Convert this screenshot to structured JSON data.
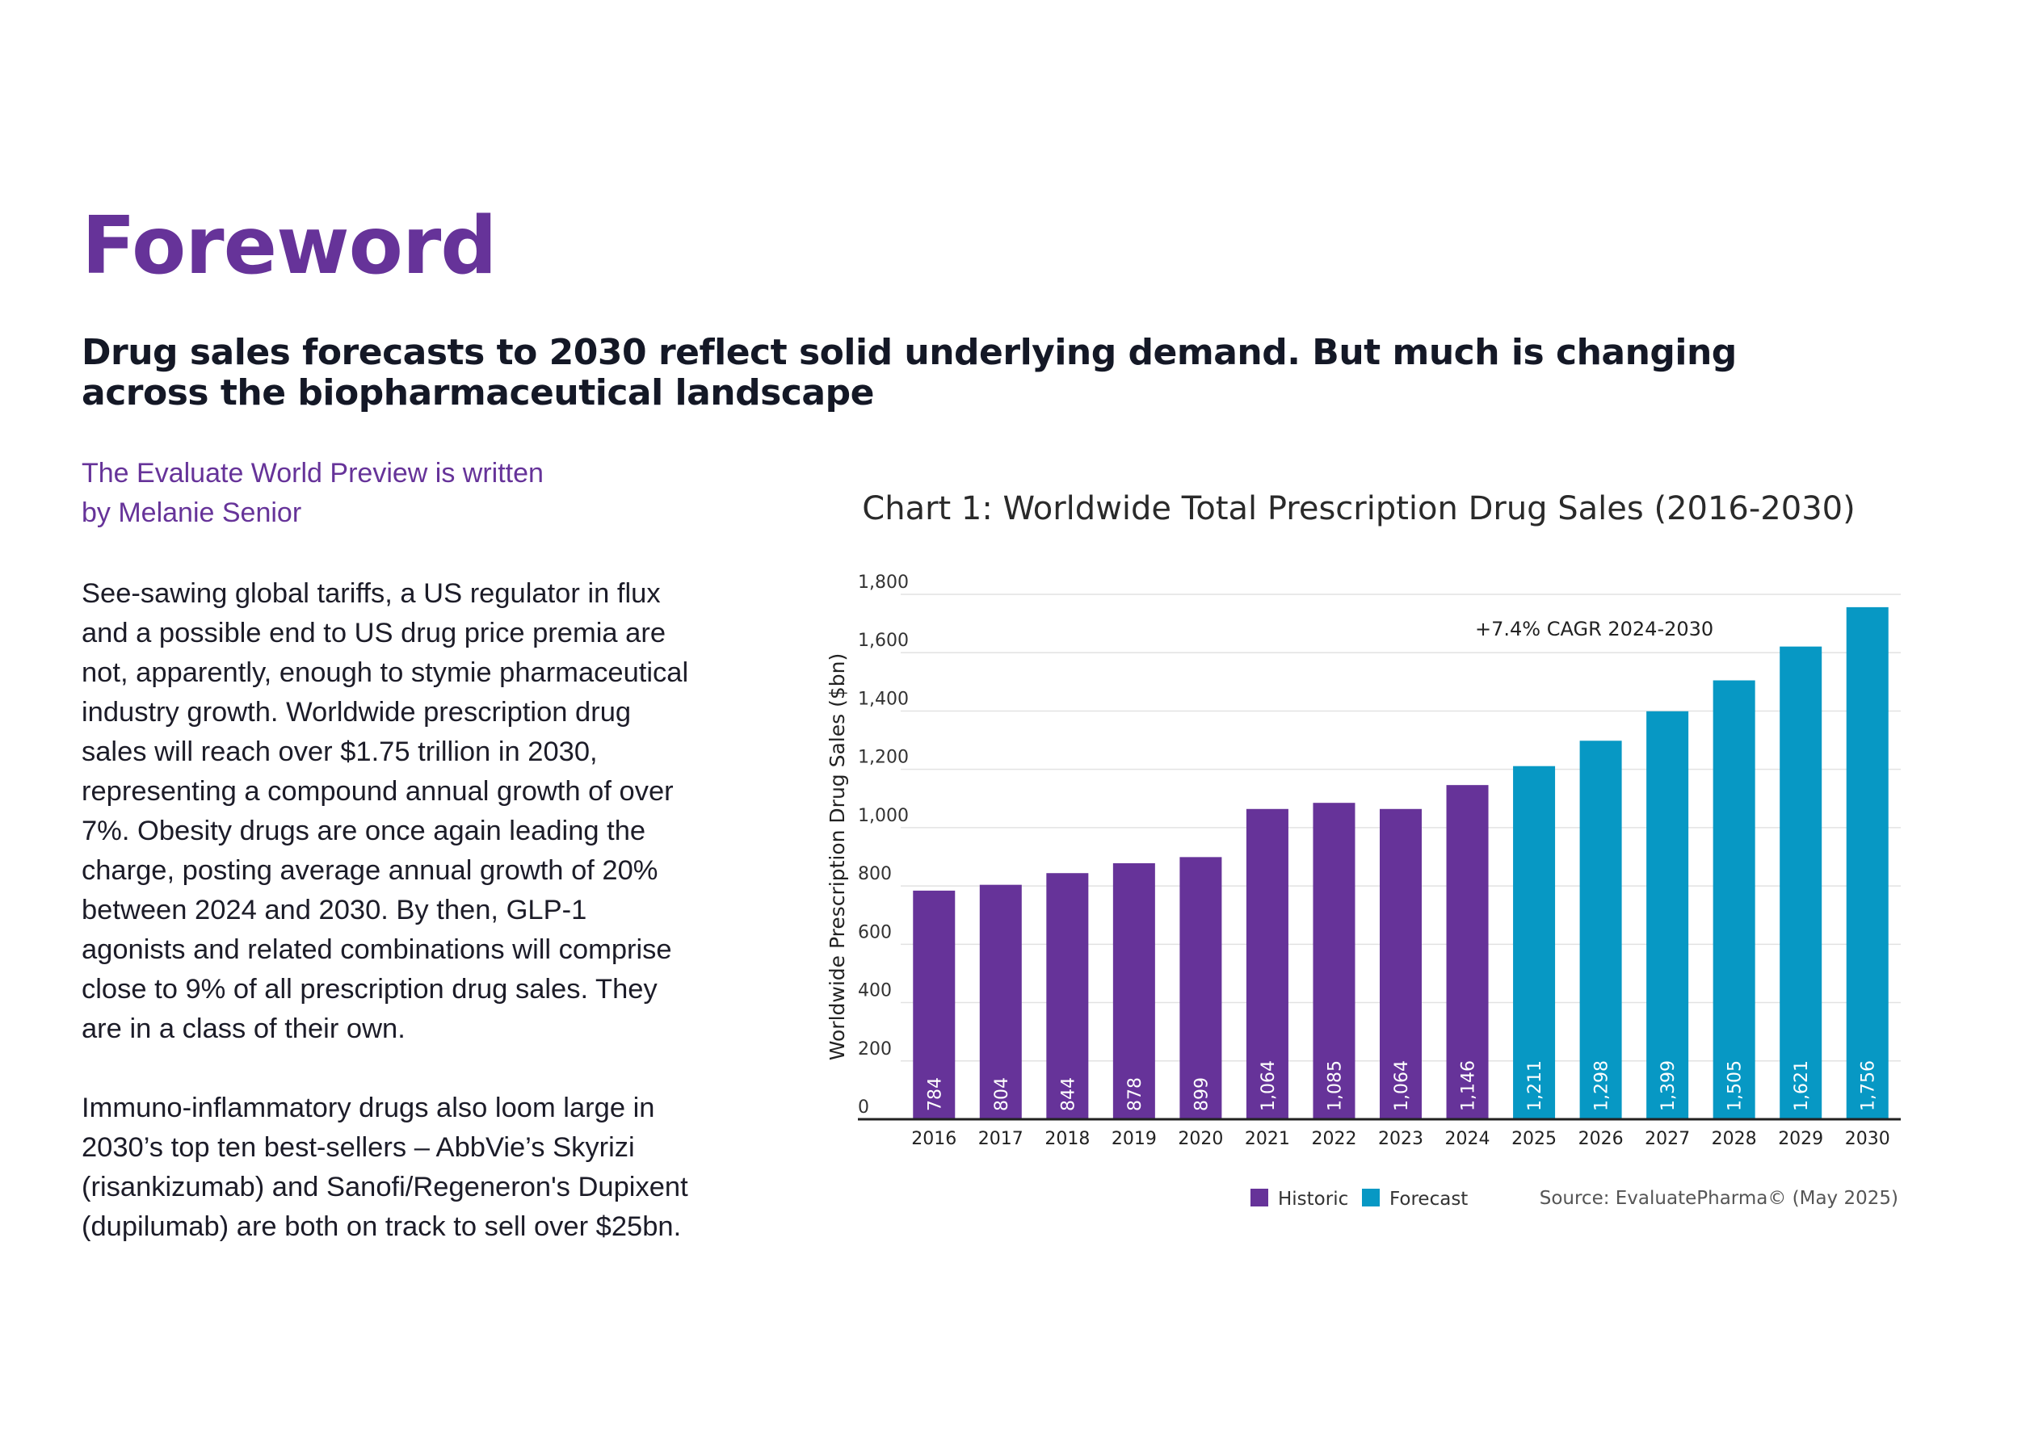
{
  "page": {
    "title": "Foreword",
    "subtitle": "Drug sales forecasts to 2030 reflect solid underlying demand. But much is changing across the biopharmaceutical landscape",
    "byline_line1": "The Evaluate World Preview is written",
    "byline_line2": "by Melanie Senior",
    "paragraph1": "See-sawing global tariffs, a US regulator in flux and a possible end to US drug price premia are not, apparently, enough to stymie pharmaceutical industry growth. Worldwide prescription drug sales will reach over $1.75 trillion in 2030, representing a compound annual growth of over 7%. Obesity drugs are once again leading the charge, posting average annual growth of 20% between 2024 and 2030. By then, GLP-1 agonists and related combinations will comprise close to 9% of all prescription drug sales. They are in a class of their own.",
    "paragraph2": "Immuno-inflammatory drugs also loom large in 2030’s top ten best-sellers – AbbVie’s Skyrizi (risankizumab) and Sanofi/Regeneron's Dupixent (dupilumab) are both on track to sell over $25bn."
  },
  "chart_data": {
    "type": "bar",
    "title": "Chart 1: Worldwide Total Prescription Drug Sales (2016-2030)",
    "ylabel": "Worldwide Prescription Drug Sales ($bn)",
    "xlabel": "",
    "categories": [
      "2016",
      "2017",
      "2018",
      "2019",
      "2020",
      "2021",
      "2022",
      "2023",
      "2024",
      "2025",
      "2026",
      "2027",
      "2028",
      "2029",
      "2030"
    ],
    "values": [
      784,
      804,
      844,
      878,
      899,
      1064,
      1085,
      1064,
      1146,
      1211,
      1298,
      1399,
      1505,
      1621,
      1756
    ],
    "value_labels": [
      "784",
      "804",
      "844",
      "878",
      "899",
      "1,064",
      "1,085",
      "1,064",
      "1,146",
      "1,211",
      "1,298",
      "1,399",
      "1,505",
      "1,621",
      "1,756"
    ],
    "series_split": {
      "Historic": [
        "2016",
        "2017",
        "2018",
        "2019",
        "2020",
        "2021",
        "2022",
        "2023",
        "2024"
      ],
      "Forecast": [
        "2025",
        "2026",
        "2027",
        "2028",
        "2029",
        "2030"
      ]
    },
    "ylim": [
      0,
      1800
    ],
    "yticks": [
      0,
      200,
      400,
      600,
      800,
      1000,
      1200,
      1400,
      1600,
      1800
    ],
    "ytick_labels": [
      "0",
      "200",
      "400",
      "600",
      "800",
      "1,000",
      "1,200",
      "1,400",
      "1,600",
      "1,800"
    ],
    "legend": [
      {
        "name": "Historic",
        "color": "#663399"
      },
      {
        "name": "Forecast",
        "color": "#0798c4"
      }
    ],
    "legend_position": "bottom",
    "grid": true,
    "annotation": "+7.4% CAGR 2024-2030",
    "source": "Source: EvaluatePharma© (May 2025)"
  }
}
